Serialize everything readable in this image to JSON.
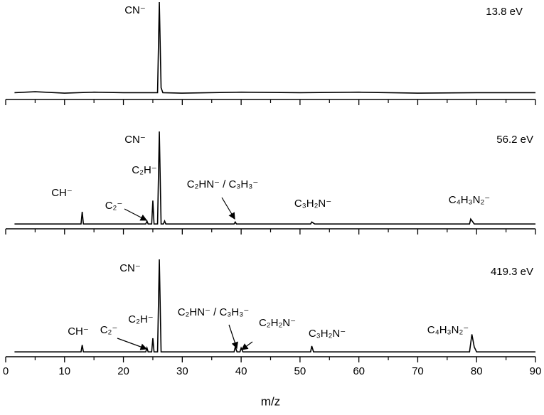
{
  "chart_data": [
    {
      "type": "line",
      "label": "13.8 eV",
      "annotations": [
        "CN⁻"
      ],
      "x": [
        1.5,
        5,
        10,
        15,
        20,
        25.8,
        26.1,
        26.4,
        26.7,
        30,
        40,
        50,
        60,
        70,
        80,
        90
      ],
      "series": [
        {
          "color": "#000000",
          "values": [
            7,
            8,
            6.5,
            7.5,
            7,
            7,
            100,
            12,
            7,
            6.5,
            7.5,
            7,
            7.5,
            6.5,
            7,
            7
          ]
        }
      ],
      "xlim": [
        0,
        90
      ],
      "xticks": [
        0,
        10,
        20,
        30,
        40,
        50,
        60,
        70,
        80,
        90
      ],
      "ylim": [
        0,
        100
      ]
    },
    {
      "type": "line",
      "label": "56.2 eV",
      "annotations": [
        "CN⁻",
        "CH⁻",
        "C₂⁻",
        "C₂H⁻",
        "C₂HN⁻ / C₃H₃⁻",
        "C₃H₂N⁻",
        "C₄H₃N₂⁻"
      ],
      "x": [
        1.5,
        12.8,
        13,
        13.2,
        23.8,
        24,
        24.2,
        24.8,
        25,
        25.2,
        25.8,
        26.1,
        26.4,
        26.8,
        27,
        27.2,
        38.8,
        39,
        39.2,
        51.8,
        52,
        52.5,
        78.8,
        79,
        79.6,
        90
      ],
      "series": [
        {
          "color": "#000000",
          "values": [
            5,
            5,
            17.5,
            5,
            5,
            8,
            5,
            5,
            29,
            5,
            5,
            100,
            5,
            5,
            8,
            5,
            5,
            7,
            5,
            5,
            7,
            5,
            5,
            10,
            5,
            5
          ]
        }
      ],
      "xlim": [
        0,
        90
      ],
      "xticks": [
        0,
        10,
        20,
        30,
        40,
        50,
        60,
        70,
        80,
        90
      ],
      "ylim": [
        0,
        100
      ]
    },
    {
      "type": "line",
      "label": "419.3 eV",
      "annotations": [
        "CN⁻",
        "CH⁻",
        "C₂⁻",
        "C₂H⁻",
        "C₂HN⁻ / C₃H₃⁻",
        "C₂H₂N⁻",
        "C₃H₂N⁻",
        "C₄H₃N₂⁻"
      ],
      "x": [
        1.5,
        12.8,
        13,
        13.2,
        23.8,
        24,
        24.2,
        24.8,
        25,
        25.2,
        25.8,
        26.1,
        26.4,
        38.8,
        39,
        39.3,
        39.8,
        40,
        40.3,
        51.8,
        52,
        52.3,
        78.8,
        79.2,
        79.6,
        80,
        90
      ],
      "series": [
        {
          "color": "#000000",
          "values": [
            5,
            5,
            12,
            5,
            5,
            9,
            5,
            5,
            19,
            5,
            5,
            100,
            5,
            5,
            10,
            5,
            5,
            9,
            5,
            5,
            11,
            5,
            5,
            23,
            10,
            5,
            5
          ]
        }
      ],
      "xlim": [
        0,
        90
      ],
      "xticks": [
        0,
        10,
        20,
        30,
        40,
        50,
        60,
        70,
        80,
        90
      ],
      "ylim": [
        0,
        100
      ],
      "xlabel": "m/z"
    }
  ]
}
